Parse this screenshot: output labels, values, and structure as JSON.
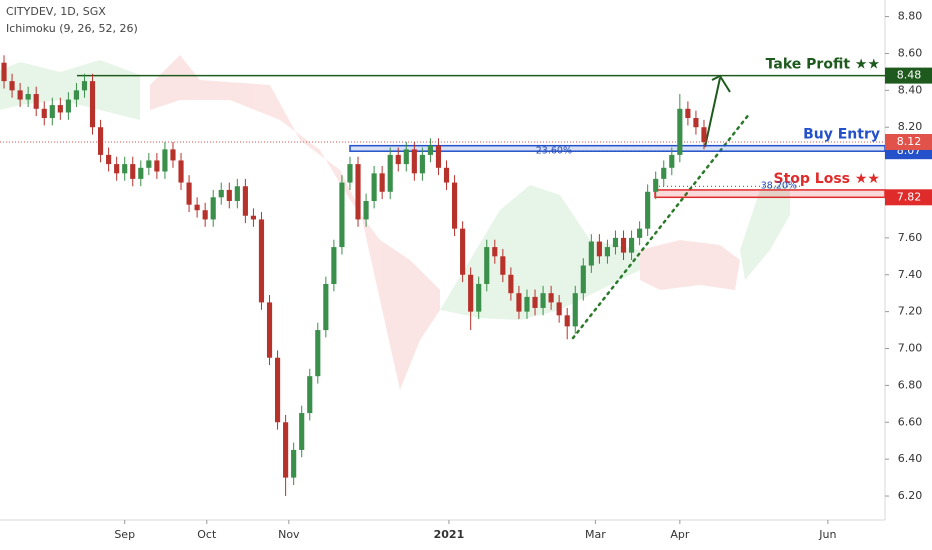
{
  "chart_data": {
    "type": "candlestick",
    "title": "CITYDEV, 1D, SGX",
    "subtitle": "Ichimoku (9, 26, 52, 26)",
    "up_color": "#3a8f4a",
    "down_color": "#b8322c",
    "xlim": [
      0,
      110
    ],
    "xticks": [
      {
        "value": 15.5,
        "label": "Sep"
      },
      {
        "value": 25.7,
        "label": "Oct"
      },
      {
        "value": 35.9,
        "label": "Nov"
      },
      {
        "value": 55.8,
        "label": "2021"
      },
      {
        "value": 74,
        "label": "Mar"
      },
      {
        "value": 84.5,
        "label": "Apr"
      },
      {
        "value": 102.9,
        "label": "Jun"
      }
    ],
    "ylim": [
      6.07,
      8.89
    ],
    "yticks": [
      {
        "value": 8.8,
        "label": "8.80"
      },
      {
        "value": 8.6,
        "label": "8.60"
      },
      {
        "value": 8.4,
        "label": "8.40"
      },
      {
        "value": 8.2,
        "label": "8.20"
      },
      {
        "value": 7.6,
        "label": "7.60"
      },
      {
        "value": 7.4,
        "label": "7.40"
      },
      {
        "value": 7.2,
        "label": "7.20"
      },
      {
        "value": 7.0,
        "label": "7.00"
      },
      {
        "value": 6.8,
        "label": "6.80"
      },
      {
        "value": 6.6,
        "label": "6.60"
      },
      {
        "value": 6.4,
        "label": "6.40"
      },
      {
        "value": 6.2,
        "label": "6.20"
      }
    ],
    "candles": [
      [
        8.55,
        8.59,
        8.41,
        8.45
      ],
      [
        8.45,
        8.49,
        8.36,
        8.4
      ],
      [
        8.4,
        8.44,
        8.31,
        8.35
      ],
      [
        8.35,
        8.42,
        8.31,
        8.38
      ],
      [
        8.38,
        8.42,
        8.26,
        8.3
      ],
      [
        8.3,
        8.34,
        8.21,
        8.25
      ],
      [
        8.25,
        8.36,
        8.21,
        8.32
      ],
      [
        8.32,
        8.36,
        8.24,
        8.28
      ],
      [
        8.28,
        8.39,
        8.24,
        8.35
      ],
      [
        8.35,
        8.44,
        8.31,
        8.4
      ],
      [
        8.4,
        8.49,
        8.36,
        8.45
      ],
      [
        8.45,
        8.49,
        8.16,
        8.2
      ],
      [
        8.2,
        8.24,
        8.01,
        8.05
      ],
      [
        8.05,
        8.09,
        7.96,
        8.0
      ],
      [
        8.0,
        8.04,
        7.91,
        7.95
      ],
      [
        7.95,
        8.04,
        7.91,
        8.0
      ],
      [
        8.0,
        8.04,
        7.88,
        7.92
      ],
      [
        7.92,
        8.02,
        7.88,
        7.98
      ],
      [
        7.98,
        8.06,
        7.94,
        8.02
      ],
      [
        8.02,
        8.06,
        7.92,
        7.96
      ],
      [
        7.96,
        8.12,
        7.92,
        8.08
      ],
      [
        8.08,
        8.12,
        7.98,
        8.02
      ],
      [
        8.02,
        8.06,
        7.86,
        7.9
      ],
      [
        7.9,
        7.94,
        7.74,
        7.78
      ],
      [
        7.78,
        7.82,
        7.71,
        7.75
      ],
      [
        7.75,
        7.79,
        7.66,
        7.7
      ],
      [
        7.7,
        7.86,
        7.66,
        7.82
      ],
      [
        7.82,
        7.9,
        7.78,
        7.86
      ],
      [
        7.86,
        7.9,
        7.76,
        7.8
      ],
      [
        7.8,
        7.92,
        7.76,
        7.88
      ],
      [
        7.88,
        7.92,
        7.68,
        7.72
      ],
      [
        7.72,
        7.76,
        7.66,
        7.7
      ],
      [
        7.7,
        7.74,
        7.21,
        7.25
      ],
      [
        7.25,
        7.29,
        6.91,
        6.95
      ],
      [
        6.95,
        6.99,
        6.56,
        6.6
      ],
      [
        6.6,
        6.64,
        6.2,
        6.3
      ],
      [
        6.3,
        6.49,
        6.26,
        6.45
      ],
      [
        6.45,
        6.69,
        6.41,
        6.65
      ],
      [
        6.65,
        6.89,
        6.61,
        6.85
      ],
      [
        6.85,
        7.14,
        6.81,
        7.1
      ],
      [
        7.1,
        7.39,
        7.06,
        7.35
      ],
      [
        7.35,
        7.59,
        7.31,
        7.55
      ],
      [
        7.55,
        7.94,
        7.51,
        7.9
      ],
      [
        7.9,
        8.04,
        7.86,
        8.0
      ],
      [
        8.0,
        8.04,
        7.66,
        7.7
      ],
      [
        7.7,
        7.84,
        7.66,
        7.8
      ],
      [
        7.8,
        7.99,
        7.76,
        7.95
      ],
      [
        7.95,
        7.99,
        7.81,
        7.85
      ],
      [
        7.85,
        8.09,
        7.81,
        8.05
      ],
      [
        8.05,
        8.09,
        7.96,
        8.0
      ],
      [
        8.0,
        8.12,
        7.96,
        8.08
      ],
      [
        8.08,
        8.12,
        7.91,
        7.95
      ],
      [
        7.95,
        8.09,
        7.91,
        8.05
      ],
      [
        8.05,
        8.14,
        8.01,
        8.1
      ],
      [
        8.1,
        8.14,
        7.94,
        7.98
      ],
      [
        7.98,
        8.02,
        7.86,
        7.9
      ],
      [
        7.9,
        7.94,
        7.61,
        7.65
      ],
      [
        7.65,
        7.69,
        7.36,
        7.4
      ],
      [
        7.4,
        7.44,
        7.1,
        7.2
      ],
      [
        7.2,
        7.39,
        7.16,
        7.35
      ],
      [
        7.35,
        7.59,
        7.31,
        7.55
      ],
      [
        7.55,
        7.59,
        7.46,
        7.5
      ],
      [
        7.5,
        7.54,
        7.36,
        7.4
      ],
      [
        7.4,
        7.44,
        7.26,
        7.3
      ],
      [
        7.3,
        7.34,
        7.16,
        7.2
      ],
      [
        7.2,
        7.32,
        7.16,
        7.28
      ],
      [
        7.28,
        7.32,
        7.18,
        7.22
      ],
      [
        7.22,
        7.34,
        7.18,
        7.3
      ],
      [
        7.3,
        7.34,
        7.21,
        7.25
      ],
      [
        7.25,
        7.29,
        7.14,
        7.18
      ],
      [
        7.18,
        7.22,
        7.05,
        7.12
      ],
      [
        7.12,
        7.34,
        7.08,
        7.3
      ],
      [
        7.3,
        7.49,
        7.26,
        7.45
      ],
      [
        7.45,
        7.62,
        7.41,
        7.58
      ],
      [
        7.58,
        7.62,
        7.46,
        7.5
      ],
      [
        7.5,
        7.59,
        7.46,
        7.55
      ],
      [
        7.55,
        7.64,
        7.51,
        7.6
      ],
      [
        7.6,
        7.64,
        7.48,
        7.52
      ],
      [
        7.52,
        7.64,
        7.48,
        7.6
      ],
      [
        7.6,
        7.69,
        7.56,
        7.65
      ],
      [
        7.65,
        7.89,
        7.61,
        7.85
      ],
      [
        7.85,
        7.96,
        7.81,
        7.92
      ],
      [
        7.92,
        8.02,
        7.88,
        7.98
      ],
      [
        7.98,
        8.09,
        7.94,
        8.05
      ],
      [
        8.05,
        8.38,
        8.01,
        8.3
      ],
      [
        8.3,
        8.34,
        8.21,
        8.25
      ],
      [
        8.25,
        8.29,
        8.16,
        8.2
      ],
      [
        8.2,
        8.24,
        8.08,
        8.12
      ]
    ],
    "levels": [
      {
        "label": "Take Profit ★★",
        "value": 8.48,
        "color": "#1e5a1e"
      },
      {
        "label": "Buy Entry",
        "value": 8.07,
        "color": "#2451c9"
      },
      {
        "label": "Stop Loss ★★",
        "value": 7.82,
        "color": "#e02b2b"
      }
    ],
    "last_price": 8.12,
    "last_price_color": "#e0524a",
    "fib_levels": [
      {
        "label": "23.60%",
        "value": 8.07
      },
      {
        "label": "38.20%",
        "value": 7.88
      }
    ]
  }
}
